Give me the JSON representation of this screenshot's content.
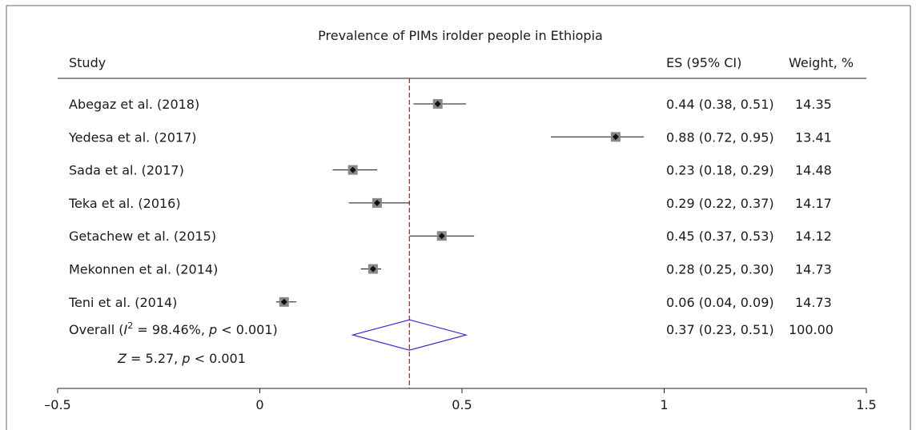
{
  "chart_data": {
    "type": "forest",
    "title": "Prevalence of PIMs irolder people in Ethiopia",
    "columns": {
      "study": "Study",
      "es": "ES (95% CI)",
      "weight": "Weight, %"
    },
    "studies": [
      {
        "label": "Abegaz et al. (2018)",
        "es": 0.44,
        "lo": 0.38,
        "hi": 0.51,
        "es_text": "0.44 (0.38, 0.51)",
        "weight_text": "14.35"
      },
      {
        "label": "Yedesa et al. (2017)",
        "es": 0.88,
        "lo": 0.72,
        "hi": 0.95,
        "es_text": "0.88 (0.72, 0.95)",
        "weight_text": "13.41"
      },
      {
        "label": "Sada et al. (2017)",
        "es": 0.23,
        "lo": 0.18,
        "hi": 0.29,
        "es_text": "0.23 (0.18, 0.29)",
        "weight_text": "14.48"
      },
      {
        "label": "Teka et al. (2016)",
        "es": 0.29,
        "lo": 0.22,
        "hi": 0.37,
        "es_text": "0.29 (0.22, 0.37)",
        "weight_text": "14.17"
      },
      {
        "label": "Getachew et al. (2015)",
        "es": 0.45,
        "lo": 0.37,
        "hi": 0.53,
        "es_text": "0.45 (0.37, 0.53)",
        "weight_text": "14.12"
      },
      {
        "label": "Mekonnen et al. (2014)",
        "es": 0.28,
        "lo": 0.25,
        "hi": 0.3,
        "es_text": "0.28 (0.25, 0.30)",
        "weight_text": "14.73"
      },
      {
        "label": "Teni et al. (2014)",
        "es": 0.06,
        "lo": 0.04,
        "hi": 0.09,
        "es_text": "0.06 (0.04, 0.09)",
        "weight_text": "14.73"
      }
    ],
    "overall": {
      "label_prefix": "Overall (",
      "i2_symbol": "I",
      "i2_sup": "2",
      "i2_text": " = 98.46%, ",
      "p_symbol": "p",
      "p_text": " < 0.001)",
      "es": 0.37,
      "lo": 0.23,
      "hi": 0.51,
      "es_text": "0.37 (0.23, 0.51)",
      "weight_text": "100.00"
    },
    "zline": {
      "z_symbol": "Z",
      "z_text": " = 5.27, ",
      "p_symbol": "p",
      "p_text": " < 0.001"
    },
    "x_ticks": [
      {
        "value": -0.5,
        "label": "–0.5"
      },
      {
        "value": 0,
        "label": "0"
      },
      {
        "value": 0.5,
        "label": "0.5"
      },
      {
        "value": 1,
        "label": "1"
      },
      {
        "value": 1.5,
        "label": "1.5"
      }
    ],
    "xlim": [
      -0.5,
      1.5
    ],
    "reference_line": 0.37,
    "colors": {
      "reference_line": "#cc2222",
      "diamond": "#3a2acc",
      "box": "#888888",
      "point": "#111111",
      "ci_line": "#111111",
      "frame": "#666666"
    }
  }
}
